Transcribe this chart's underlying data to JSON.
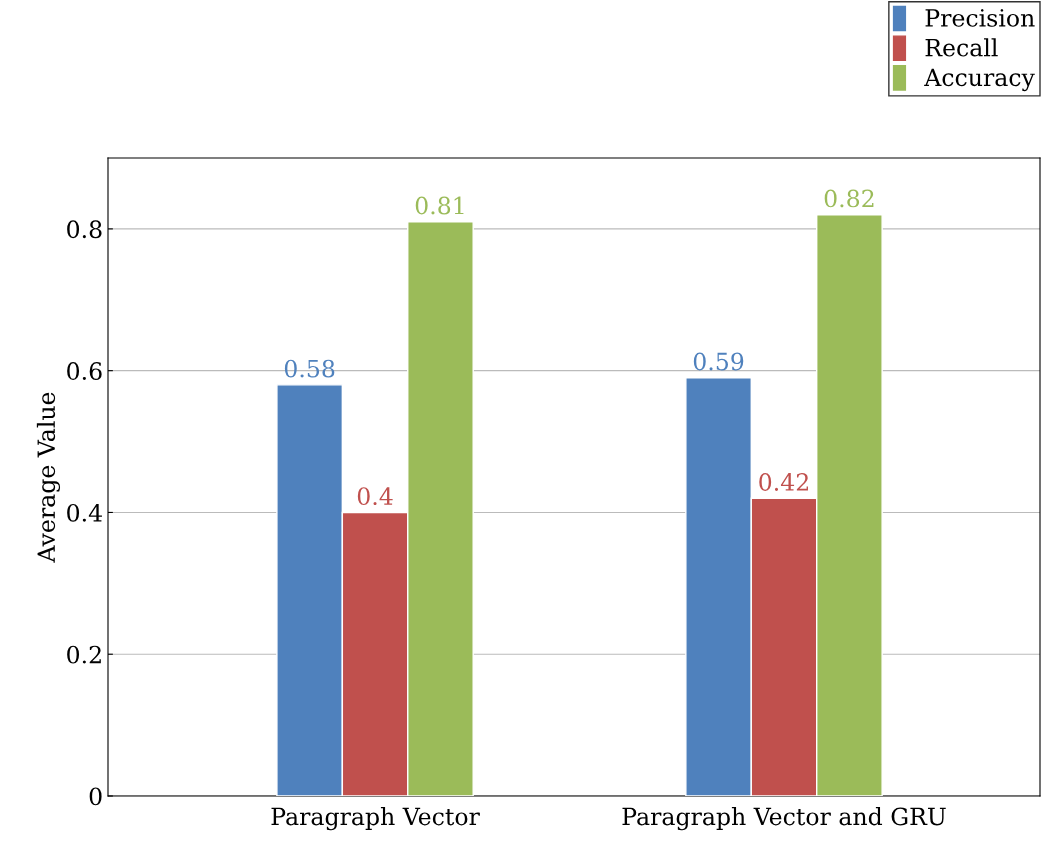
{
  "chart_data": {
    "type": "bar",
    "ylabel": "Average Value",
    "categories": [
      "Paragraph Vector",
      "Paragraph Vector and GRU"
    ],
    "series": [
      {
        "name": "Precision",
        "color": "#4f81bd",
        "values": [
          0.58,
          0.59
        ]
      },
      {
        "name": "Recall",
        "color": "#c0504d",
        "values": [
          0.4,
          0.42
        ]
      },
      {
        "name": "Accuracy",
        "color": "#9bbb59",
        "values": [
          0.81,
          0.82
        ]
      }
    ],
    "ylim": [
      0,
      0.9
    ],
    "yticks": [
      0,
      0.2,
      0.4,
      0.6,
      0.8
    ],
    "grid": "y",
    "legend": "top right",
    "data_labels": true
  }
}
